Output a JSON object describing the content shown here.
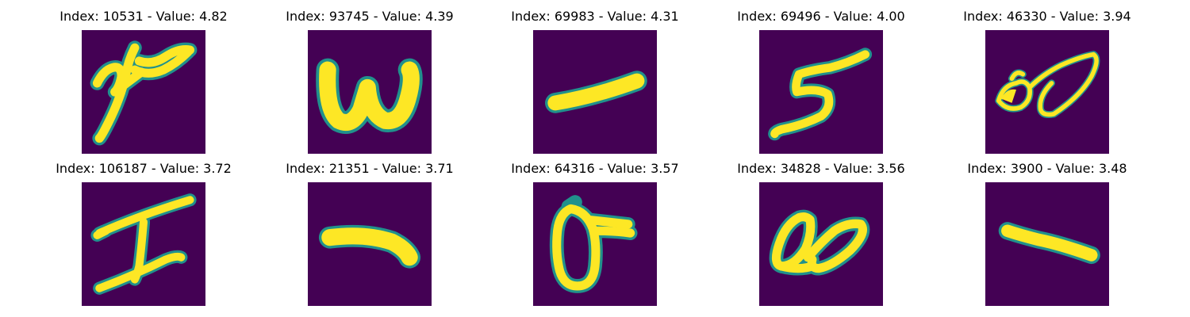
{
  "colors": {
    "background": "#440154",
    "foreground": "#fde725",
    "edge_mid": "#21918c",
    "edge_soft": "#3b528b"
  },
  "panels": [
    {
      "title": "Index: 10531 - Value: 4.82",
      "glyph": "script-y"
    },
    {
      "title": "Index: 93745 - Value: 4.39",
      "glyph": "w"
    },
    {
      "title": "Index: 69983 - Value: 4.31",
      "glyph": "dash"
    },
    {
      "title": "Index: 69496 - Value: 4.00",
      "glyph": "five"
    },
    {
      "title": "Index: 46330 - Value: 3.94",
      "glyph": "loops"
    },
    {
      "title": "Index: 106187 - Value: 3.72",
      "glyph": "I"
    },
    {
      "title": "Index: 21351 - Value: 3.71",
      "glyph": "dash-curved"
    },
    {
      "title": "Index: 64316 - Value: 3.57",
      "glyph": "sigma"
    },
    {
      "title": "Index: 34828 - Value: 3.56",
      "glyph": "double-loop"
    },
    {
      "title": "Index: 3900 - Value: 3.48",
      "glyph": "short-dash"
    }
  ]
}
